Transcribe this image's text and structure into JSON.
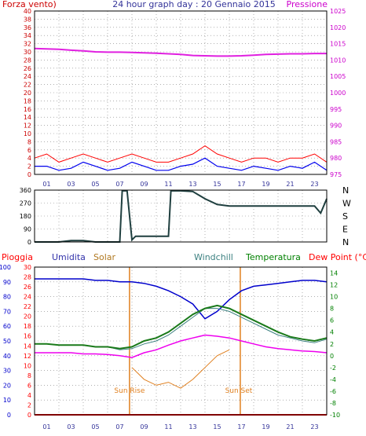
{
  "header": {
    "left_label": "Forza vento)",
    "title": "24 hour graph day : 20 Gennaio 2015",
    "right_label": "Pressione"
  },
  "colors": {
    "background": "#ffffff",
    "frame": "#000000",
    "grid": "#808080",
    "wind_left_axis": "#cc0000",
    "pressure_axis": "#cc00cc",
    "pressure_line": "#e020e0",
    "gust": "#ff0000",
    "wind_avg": "#0000ee",
    "direction_line": "#1f3f3f",
    "rain": "#ff0000",
    "humidity": "#0000cc",
    "solar": "#e08020",
    "solar_label": "#b07820",
    "windchill": "#3c8080",
    "temperature": "#1a7a1a",
    "dewpoint": "#ee00ee",
    "temp_axis": "#008000",
    "dew_label": "#ff0000"
  },
  "chart_data": [
    {
      "type": "line",
      "x": [
        0,
        1,
        2,
        3,
        4,
        5,
        6,
        7,
        8,
        9,
        10,
        11,
        12,
        13,
        14,
        15,
        16,
        17,
        18,
        19,
        20,
        21,
        22,
        23,
        24
      ],
      "x_tick_labels": [
        "01",
        "03",
        "05",
        "07",
        "09",
        "11",
        "13",
        "15",
        "17",
        "19",
        "21",
        "23"
      ],
      "left_axis": {
        "label": "Forza vento)",
        "ylim": [
          0,
          40
        ],
        "ticks": [
          0,
          2,
          4,
          6,
          8,
          10,
          12,
          14,
          16,
          18,
          20,
          22,
          24,
          26,
          28,
          30,
          32,
          34,
          36,
          38,
          40
        ]
      },
      "right_axis": {
        "label": "Pressione",
        "ylim": [
          975,
          1025
        ],
        "ticks": [
          975,
          980,
          985,
          990,
          995,
          1000,
          1005,
          1010,
          1015,
          1020,
          1025
        ]
      },
      "series": [
        {
          "axis": "right",
          "values": [
            1013.5,
            1013.4,
            1013.3,
            1013.0,
            1012.8,
            1012.5,
            1012.4,
            1012.4,
            1012.3,
            1012.2,
            1012.1,
            1011.9,
            1011.7,
            1011.4,
            1011.3,
            1011.2,
            1011.2,
            1011.3,
            1011.5,
            1011.7,
            1011.8,
            1011.9,
            1011.9,
            1012.0,
            1012.0
          ]
        },
        {
          "axis": "left",
          "values": [
            4,
            5,
            3,
            4,
            5,
            4,
            3,
            4,
            5,
            4,
            3,
            3,
            4,
            5,
            7,
            5,
            4,
            3,
            4,
            4,
            3,
            4,
            4,
            5,
            3
          ]
        },
        {
          "axis": "left",
          "values": [
            2,
            2,
            1,
            1.5,
            3,
            2,
            1,
            1.5,
            3,
            2,
            1,
            1,
            2,
            2.5,
            4,
            2,
            1.5,
            1,
            2,
            1.5,
            1,
            2,
            1.5,
            3,
            1
          ]
        }
      ],
      "xlim": [
        0,
        24
      ],
      "grid": true
    },
    {
      "type": "line",
      "x": [
        0,
        1,
        2,
        3,
        4,
        5,
        6,
        7,
        7.2,
        7.6,
        8,
        8.3,
        9,
        10,
        11,
        11.2,
        12,
        13,
        14,
        15,
        16,
        17,
        18,
        19,
        20,
        21,
        22,
        23,
        23.5,
        24
      ],
      "values": [
        0,
        0,
        0,
        10,
        10,
        0,
        0,
        0,
        355,
        355,
        15,
        40,
        40,
        40,
        40,
        355,
        355,
        350,
        300,
        260,
        250,
        250,
        250,
        250,
        250,
        250,
        250,
        250,
        200,
        300
      ],
      "left_axis": {
        "ylim": [
          0,
          360
        ],
        "ticks": [
          0,
          90,
          180,
          270,
          360
        ]
      },
      "right_axis_labels": [
        "N",
        "W",
        "S",
        "E",
        "N"
      ],
      "xlim": [
        0,
        24
      ],
      "grid": true
    },
    {
      "type": "line",
      "x": [
        0,
        1,
        2,
        3,
        4,
        5,
        6,
        7,
        8,
        9,
        10,
        11,
        12,
        13,
        14,
        15,
        16,
        17,
        18,
        19,
        20,
        21,
        22,
        23,
        24
      ],
      "x_tick_labels": [
        "01",
        "03",
        "05",
        "07",
        "09",
        "11",
        "13",
        "15",
        "17",
        "19",
        "21",
        "23"
      ],
      "top_labels": [
        "Pioggia",
        "Umidita",
        "Solar",
        "Windchill",
        "Temperatura",
        "Dew Point (°C)"
      ],
      "axes": {
        "humidity": {
          "ylim": [
            0,
            100
          ],
          "ticks": [
            0,
            10,
            20,
            30,
            40,
            50,
            60,
            70,
            80,
            90,
            100
          ]
        },
        "rain": {
          "ylim": [
            0,
            30
          ],
          "ticks": [
            0,
            2,
            4,
            6,
            8,
            10,
            12,
            14,
            16,
            18,
            20,
            22,
            24,
            26,
            28,
            30
          ]
        },
        "temperature": {
          "ylim": [
            -10,
            15
          ],
          "ticks": [
            -10,
            -8,
            -6,
            -4,
            -2,
            0,
            2,
            4,
            6,
            8,
            10,
            12,
            14
          ]
        }
      },
      "series": [
        {
          "name": "Umidita",
          "axis": "humidity",
          "values": [
            92,
            92,
            92,
            92,
            92,
            91,
            91,
            90,
            90,
            89,
            87,
            84,
            80,
            75,
            65,
            70,
            78,
            84,
            87,
            88,
            89,
            90,
            91,
            91,
            90
          ]
        },
        {
          "name": "Pioggia",
          "axis": "rain",
          "values": [
            0,
            0,
            0,
            0,
            0,
            0,
            0,
            0,
            0,
            0,
            0,
            0,
            0,
            0,
            0,
            0,
            0,
            0,
            0,
            0,
            0,
            0,
            0,
            0,
            0
          ]
        },
        {
          "name": "Temperatura",
          "axis": "temperature",
          "values": [
            2.0,
            2.0,
            1.8,
            1.8,
            1.8,
            1.5,
            1.5,
            1.2,
            1.5,
            2.5,
            3.0,
            4.0,
            5.5,
            7.0,
            8.0,
            8.5,
            8.0,
            7.0,
            6.0,
            5.0,
            4.0,
            3.2,
            2.8,
            2.5,
            3.0
          ]
        },
        {
          "name": "Windchill",
          "axis": "temperature",
          "values": [
            2.0,
            2.0,
            1.8,
            1.8,
            1.8,
            1.5,
            1.5,
            1.0,
            1.2,
            2.0,
            2.5,
            3.5,
            5.0,
            6.5,
            8.0,
            8.0,
            7.5,
            6.5,
            5.5,
            4.5,
            3.5,
            3.0,
            2.5,
            2.2,
            2.8
          ]
        },
        {
          "name": "Dew Point (°C)",
          "axis": "temperature",
          "values": [
            0.5,
            0.5,
            0.5,
            0.5,
            0.3,
            0.3,
            0.2,
            0.0,
            -0.3,
            0.5,
            1.0,
            1.8,
            2.5,
            3.0,
            3.5,
            3.3,
            3.0,
            2.5,
            2.0,
            1.5,
            1.2,
            1.0,
            0.8,
            0.7,
            0.5
          ]
        },
        {
          "name": "Solar",
          "axis": "temperature",
          "values": [
            null,
            null,
            null,
            null,
            null,
            null,
            null,
            null,
            -2.0,
            -4.0,
            -5.0,
            -4.5,
            -5.5,
            -4.0,
            -2.0,
            0.0,
            1.0,
            null,
            null,
            null,
            null,
            null,
            null,
            null,
            null
          ]
        }
      ],
      "annotations": [
        "Sun Rise",
        "Sun Set"
      ],
      "sunrise_x": 7.8,
      "sunset_x": 16.9,
      "xlim": [
        0,
        24
      ],
      "grid": true
    }
  ]
}
